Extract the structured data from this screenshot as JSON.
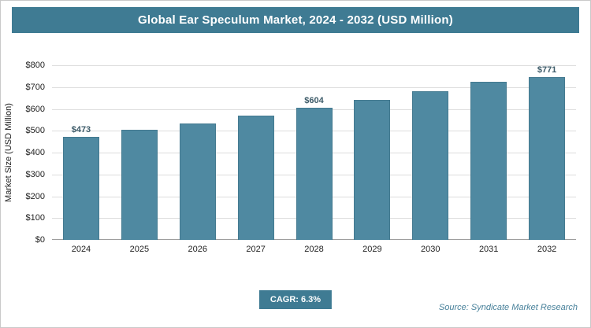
{
  "title": "Global Ear Speculum Market, 2024 - 2032 (USD Million)",
  "chart_data": {
    "type": "bar",
    "title": "Global Ear Speculum Market, 2024 - 2032 (USD Million)",
    "categories": [
      "2024",
      "2025",
      "2026",
      "2027",
      "2028",
      "2029",
      "2030",
      "2031",
      "2032"
    ],
    "values": [
      473,
      503,
      535,
      568,
      604,
      641,
      682,
      725,
      771
    ],
    "bar_labels": [
      "$473",
      "",
      "",
      "",
      "$604",
      "",
      "",
      "",
      "$771"
    ],
    "ylabel": "Market Size (USD Million)",
    "xlabel": "",
    "ylim": [
      0,
      800
    ],
    "ytick_step": 100,
    "ytick_labels": [
      "$0",
      "$100",
      "$200",
      "$300",
      "$400",
      "$500",
      "$600",
      "$700",
      "$800"
    ],
    "grid": true,
    "legend": "none"
  },
  "footer": {
    "cagr_label": "CAGR: 6.3%",
    "source": "Source: Syndicate Market Research"
  },
  "colors": {
    "title_bg": "#3f7b93",
    "bar": "#4f89a1",
    "bar_border": "#447a90",
    "badge_bg": "#3f7b93",
    "source_text": "#47809a",
    "grid": "#dcdcdc",
    "axis": "#9e9e9e",
    "value_label": "#3d5b69"
  }
}
